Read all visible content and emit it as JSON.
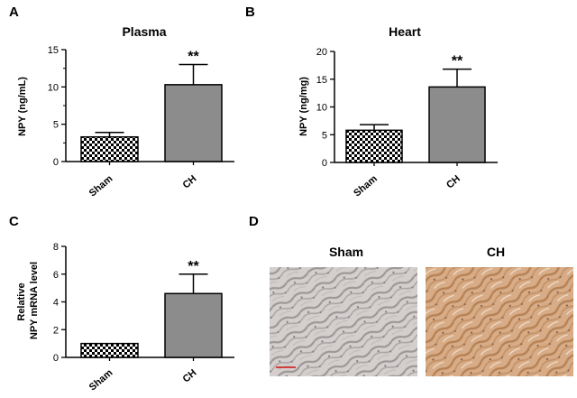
{
  "panels": {
    "a": {
      "letter": "A"
    },
    "b": {
      "letter": "B"
    },
    "c": {
      "letter": "C"
    },
    "d": {
      "letter": "D",
      "images": [
        {
          "label": "Sham"
        },
        {
          "label": "CH"
        }
      ]
    }
  },
  "colors": {
    "sham_fill_pattern": "checkered",
    "ch_fill": "#8c8c8c",
    "axis": "#000000",
    "sham_tissue": "#c9c3bf",
    "ch_tissue": "#c79a72",
    "scale_bar": "#d04040"
  },
  "chart_data": [
    {
      "id": "A",
      "type": "bar",
      "title": "Plasma",
      "xlabel": "",
      "ylabel": "NPY (ng/mL)",
      "ylabel_lines": [
        "NPY (ng/mL)"
      ],
      "categories": [
        "Sham",
        "CH"
      ],
      "values": [
        3.3,
        10.3
      ],
      "errors": [
        0.6,
        2.7
      ],
      "ylim": [
        0,
        15
      ],
      "yticks": [
        0,
        5,
        10,
        15
      ],
      "minor_ticks": true,
      "significance": [
        "",
        "**"
      ]
    },
    {
      "id": "B",
      "type": "bar",
      "title": "Heart",
      "xlabel": "",
      "ylabel": "NPY (ng/mg)",
      "ylabel_lines": [
        "NPY (ng/mg)"
      ],
      "categories": [
        "Sham",
        "CH"
      ],
      "values": [
        5.8,
        13.6
      ],
      "errors": [
        1.0,
        3.2
      ],
      "ylim": [
        0,
        20
      ],
      "yticks": [
        0,
        5,
        10,
        15,
        20
      ],
      "minor_ticks": false,
      "significance": [
        "",
        "**"
      ]
    },
    {
      "id": "C",
      "type": "bar",
      "title": "",
      "xlabel": "",
      "ylabel": "Relative NPY mRNA level",
      "ylabel_lines": [
        "Relative",
        "NPY mRNA  level"
      ],
      "categories": [
        "Sham",
        "CH"
      ],
      "values": [
        1.0,
        4.6
      ],
      "errors": [
        0.0,
        1.4
      ],
      "ylim": [
        0,
        8
      ],
      "yticks": [
        0,
        2,
        4,
        6,
        8
      ],
      "minor_ticks": false,
      "significance": [
        "",
        "**"
      ]
    }
  ]
}
